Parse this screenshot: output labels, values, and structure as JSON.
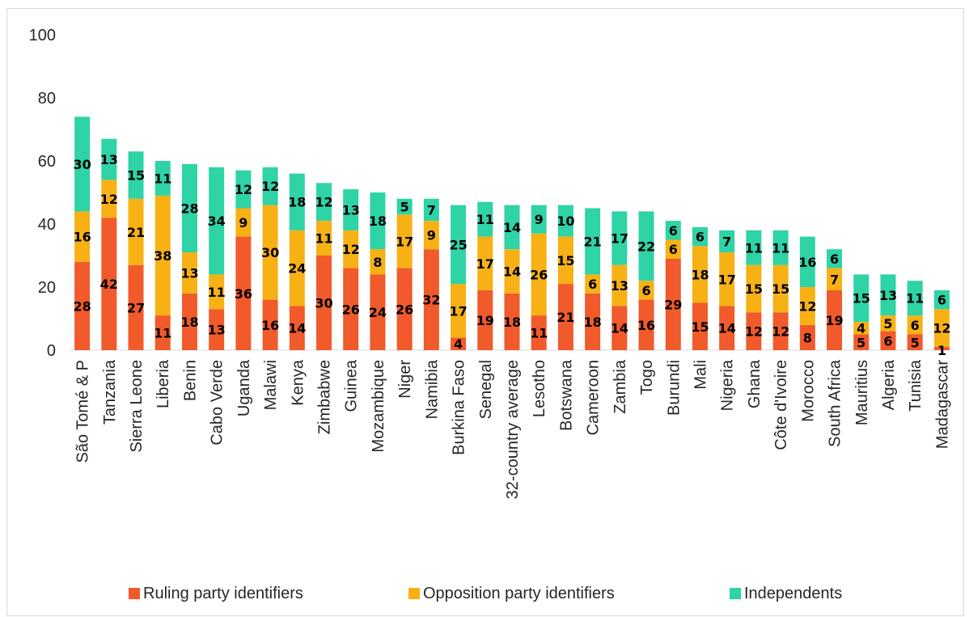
{
  "chart_data": {
    "type": "bar",
    "stacked": true,
    "title": "",
    "xlabel": "",
    "ylabel": "",
    "ylim": [
      0,
      100
    ],
    "yticks": [
      0,
      20,
      40,
      60,
      80,
      100
    ],
    "grid": false,
    "legend_position": "bottom",
    "categories": [
      "São Tomé & P",
      "Tanzania",
      "Sierra Leone",
      "Liberia",
      "Benin",
      "Cabo Verde",
      "Uganda",
      "Malawi",
      "Kenya",
      "Zimbabwe",
      "Guinea",
      "Mozambique",
      "Niger",
      "Namibia",
      "Burkina Faso",
      "Senegal",
      "32-country average",
      "Lesotho",
      "Botswana",
      "Cameroon",
      "Zambia",
      "Togo",
      "Burundi",
      "Mali",
      "Nigeria",
      "Ghana",
      "Côte d'Ivoire",
      "Morocco",
      "South Africa",
      "Mauritius",
      "Algeria",
      "Tunisia",
      "Madagascar"
    ],
    "series": [
      {
        "name": "Ruling party identifiers",
        "color": "#f15a2b",
        "values": [
          28,
          42,
          27,
          11,
          18,
          13,
          36,
          16,
          14,
          30,
          26,
          24,
          26,
          32,
          4,
          19,
          18,
          11,
          21,
          18,
          14,
          16,
          29,
          15,
          14,
          12,
          12,
          8,
          19,
          5,
          6,
          5,
          1
        ]
      },
      {
        "name": "Opposition party identifiers",
        "color": "#f7b114",
        "values": [
          16,
          12,
          21,
          38,
          13,
          11,
          9,
          30,
          24,
          11,
          12,
          8,
          17,
          9,
          17,
          17,
          14,
          26,
          15,
          6,
          13,
          6,
          6,
          18,
          17,
          15,
          15,
          12,
          7,
          4,
          5,
          6,
          12
        ]
      },
      {
        "name": "Independents",
        "color": "#2ed3a6",
        "values": [
          30,
          13,
          15,
          11,
          28,
          34,
          12,
          12,
          18,
          12,
          13,
          18,
          5,
          7,
          25,
          11,
          14,
          9,
          10,
          21,
          17,
          22,
          6,
          6,
          7,
          11,
          11,
          16,
          6,
          15,
          13,
          11,
          6
        ]
      }
    ]
  }
}
